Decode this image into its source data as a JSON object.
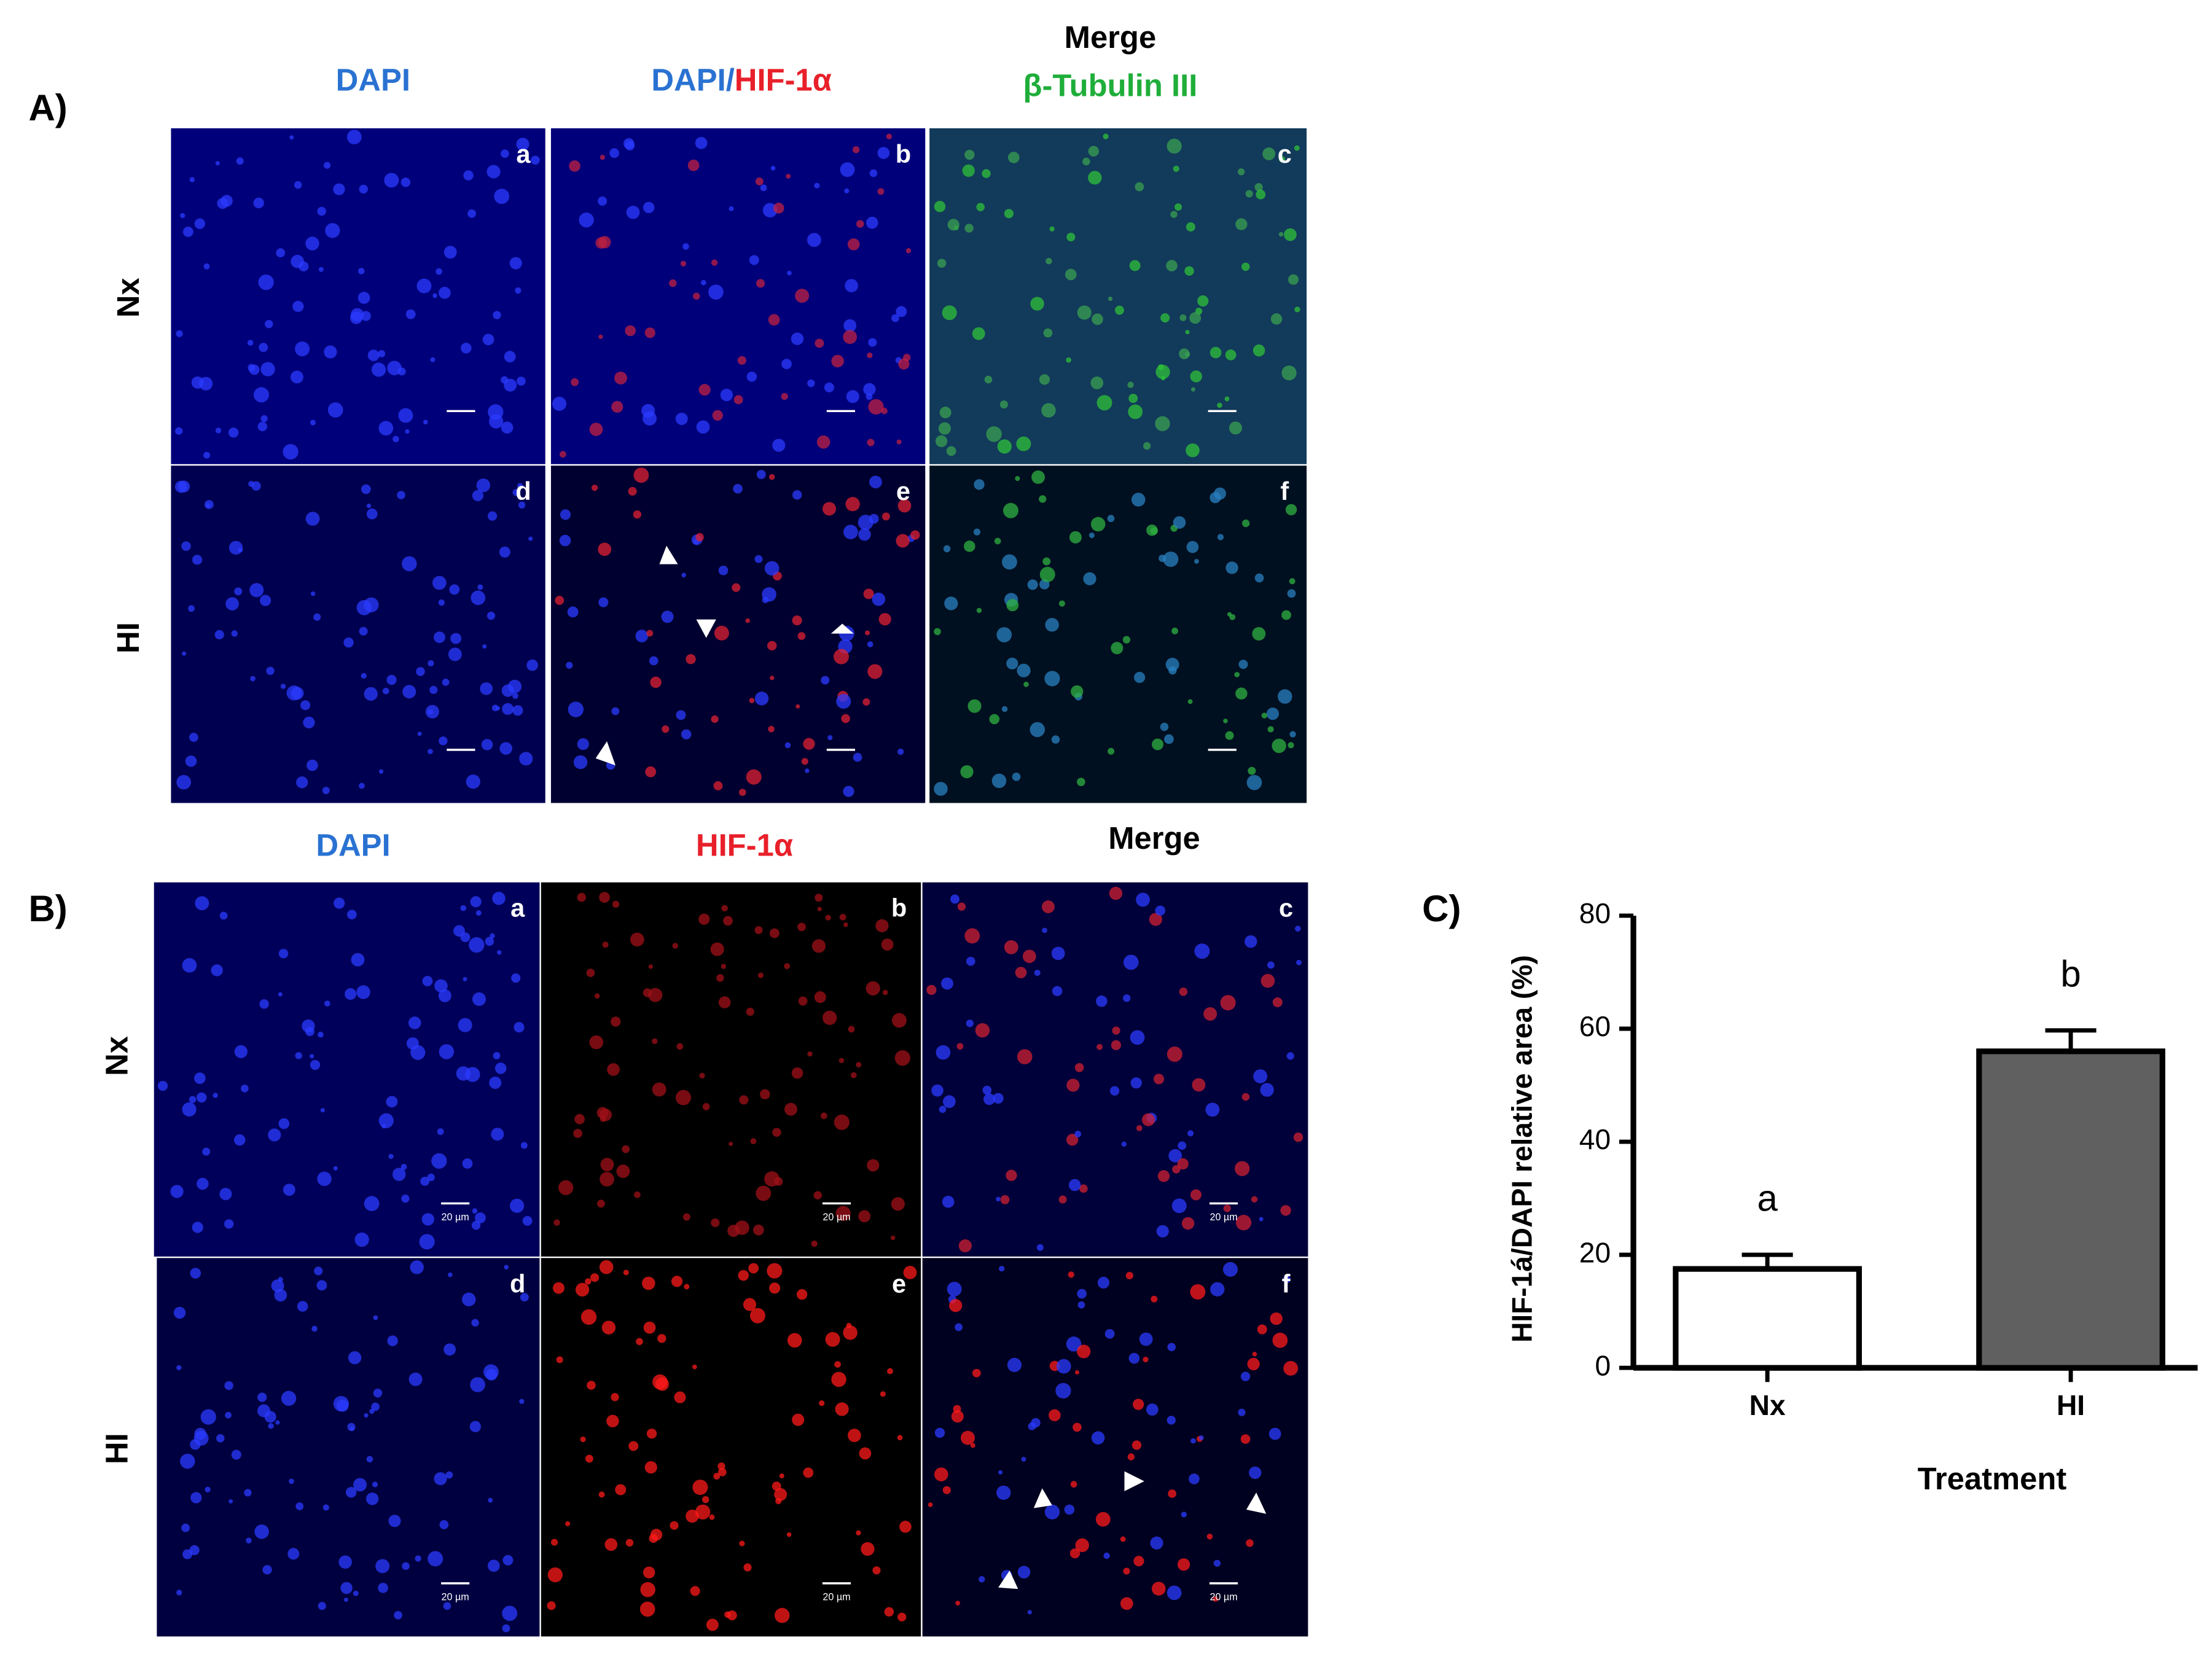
{
  "figure": {
    "panel_a": {
      "label": "A)",
      "col_headers": [
        "DAPI",
        "DAPI/",
        "HIF-1α",
        "Merge",
        "β-Tubulin III"
      ],
      "rows": [
        "Nx",
        "HI"
      ],
      "subpanels": [
        "a",
        "b",
        "c",
        "d",
        "e",
        "f"
      ]
    },
    "panel_b": {
      "label": "B)",
      "col_headers": [
        "DAPI",
        "HIF-1α",
        "Merge"
      ],
      "rows": [
        "Nx",
        "HI"
      ],
      "subpanels": [
        "a",
        "b",
        "c",
        "d",
        "e",
        "f"
      ],
      "scale_bar": "20 µm"
    },
    "panel_c": {
      "label": "C)"
    }
  },
  "chart_data": {
    "type": "bar",
    "x_label": "Treatment",
    "y_label": "HIF-1á/DAPI relative area (%)",
    "categories": [
      "Nx",
      "HI"
    ],
    "values": [
      17.5,
      56
    ],
    "errors": [
      2.5,
      3.7
    ],
    "colors": [
      "#ffffff",
      "#606060"
    ],
    "annotations": [
      "a",
      "b"
    ],
    "ylim": [
      0,
      80
    ],
    "yticks": [
      0,
      20,
      40,
      60,
      80
    ]
  }
}
